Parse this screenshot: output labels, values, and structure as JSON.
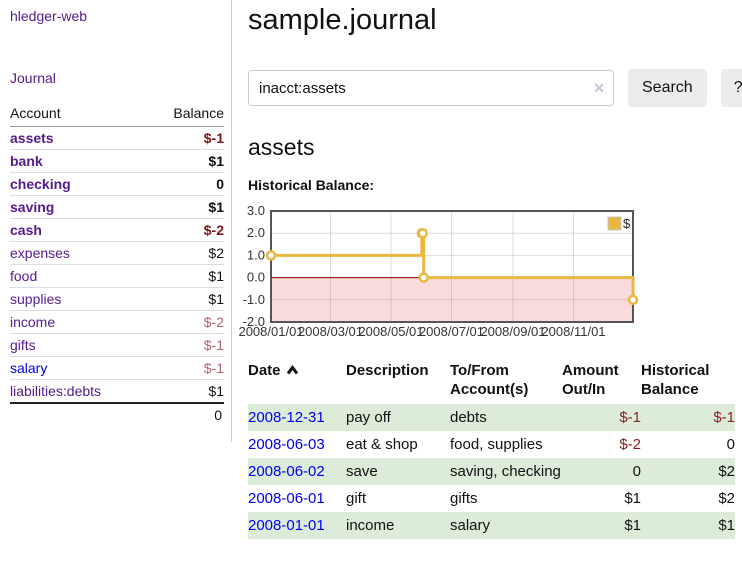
{
  "colors": {
    "accent_purple": "#551a8b",
    "link_blue": "#0000ee",
    "negative_strong": "#7f1419",
    "negative_dim": "#b2626c",
    "table_negative": "#8b2026",
    "row_green": "#ddecd9",
    "chart_gold": "#e9b840",
    "chart_negative_bg": "#fadbdb",
    "chart_zero_line": "#8b0000",
    "chart_border": "#555555"
  },
  "sidebar": {
    "brand": "hledger-web",
    "nav": {
      "journal": "Journal"
    },
    "table": {
      "headers": {
        "account": "Account",
        "balance": "Balance"
      },
      "accounts": [
        {
          "name": "assets",
          "indent": 1,
          "bold": true,
          "link": "purple",
          "balance": "$-1",
          "balance_style": "neg-strong"
        },
        {
          "name": "bank",
          "indent": 2,
          "bold": true,
          "link": "purple",
          "balance": "$1",
          "balance_style": "plain"
        },
        {
          "name": "checking",
          "indent": 3,
          "bold": true,
          "link": "purple",
          "balance": "0",
          "balance_style": "plain"
        },
        {
          "name": "saving",
          "indent": 3,
          "bold": true,
          "link": "purple",
          "balance": "$1",
          "balance_style": "plain"
        },
        {
          "name": "cash",
          "indent": 2,
          "bold": true,
          "link": "purple",
          "balance": "$-2",
          "balance_style": "neg-strong"
        },
        {
          "name": "expenses",
          "indent": 1,
          "bold": false,
          "link": "purple",
          "balance": "$2",
          "balance_style": "plain"
        },
        {
          "name": "food",
          "indent": 2,
          "bold": false,
          "link": "purple",
          "balance": "$1",
          "balance_style": "plain"
        },
        {
          "name": "supplies",
          "indent": 2,
          "bold": false,
          "link": "purple",
          "balance": "$1",
          "balance_style": "plain"
        },
        {
          "name": "income",
          "indent": 1,
          "bold": false,
          "link": "purple",
          "balance": "$-2",
          "balance_style": "neg-dim"
        },
        {
          "name": "gifts",
          "indent": 2,
          "bold": false,
          "link": "purple",
          "balance": "$-1",
          "balance_style": "neg-dim"
        },
        {
          "name": "salary",
          "indent": 2,
          "bold": false,
          "link": "blue",
          "balance": "$-1",
          "balance_style": "neg-dim"
        },
        {
          "name": "liabilities:debts",
          "indent": 1,
          "bold": false,
          "link": "purple",
          "balance": "$1",
          "balance_style": "plain"
        }
      ],
      "total": "0"
    }
  },
  "header": {
    "title": "sample.journal"
  },
  "search": {
    "value": "inacct:assets",
    "clear_icon": "✕",
    "button": "Search",
    "help_button": "?"
  },
  "account_page": {
    "heading": "assets"
  },
  "chart_data": {
    "type": "line",
    "style": "step-after",
    "title": "Historical Balance:",
    "series": [
      {
        "name": "$",
        "x": [
          "2008-01-01",
          "2008-06-01",
          "2008-06-02",
          "2008-06-03",
          "2008-12-31"
        ],
        "values": [
          1,
          2,
          2,
          0,
          -1
        ]
      }
    ],
    "xlim": [
      "2008-01-01",
      "2008-12-31"
    ],
    "ylim": [
      -2,
      3
    ],
    "x_ticks": [
      "2008/01/01",
      "2008/03/01",
      "2008/05/01",
      "2008/07/01",
      "2008/09/01",
      "2008/11/01"
    ],
    "y_ticks": [
      3.0,
      2.0,
      1.0,
      0.0,
      -1.0,
      -2.0
    ],
    "grid": true,
    "legend_position": "top-right",
    "negative_region_shaded": true
  },
  "transactions": {
    "headers": [
      "Date",
      "Description",
      "To/From Account(s)",
      "Amount Out/In",
      "Historical Balance"
    ],
    "sort": {
      "column": "Date",
      "direction": "ascending",
      "icon": "chevron-up"
    },
    "rows": [
      {
        "date": "2008-12-31",
        "description": "pay off",
        "accounts": "debts",
        "amount": "$-1",
        "amount_negative": true,
        "balance": "$-1",
        "balance_negative": true
      },
      {
        "date": "2008-06-03",
        "description": "eat & shop",
        "accounts": "food, supplies",
        "amount": "$-2",
        "amount_negative": true,
        "balance": "0",
        "balance_negative": false
      },
      {
        "date": "2008-06-02",
        "description": "save",
        "accounts": "saving, checking",
        "amount": "0",
        "amount_negative": false,
        "balance": "$2",
        "balance_negative": false
      },
      {
        "date": "2008-06-01",
        "description": "gift",
        "accounts": "gifts",
        "amount": "$1",
        "amount_negative": false,
        "balance": "$2",
        "balance_negative": false
      },
      {
        "date": "2008-01-01",
        "description": "income",
        "accounts": "salary",
        "amount": "$1",
        "amount_negative": false,
        "balance": "$1",
        "balance_negative": false
      }
    ]
  }
}
